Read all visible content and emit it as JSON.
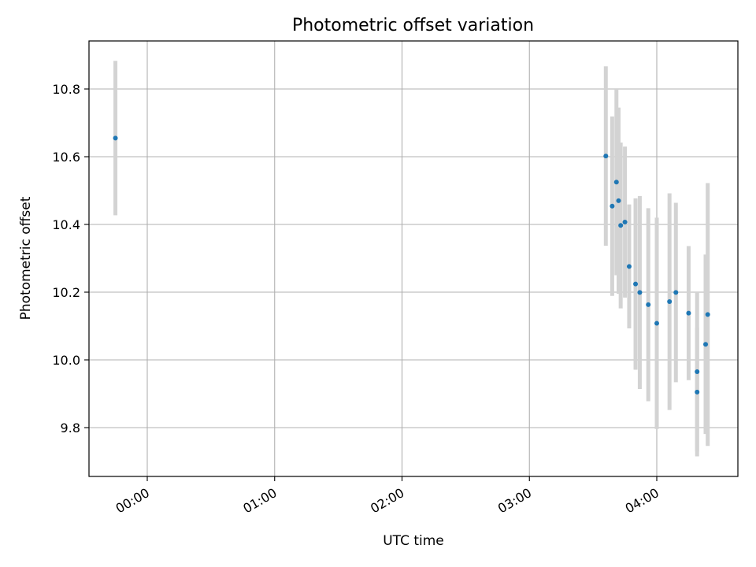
{
  "chart_data": {
    "type": "scatter",
    "title": "Photometric offset variation",
    "xlabel": "UTC time",
    "ylabel": "Photometric offset",
    "x_ticks": [
      "00:00",
      "01:00",
      "02:00",
      "03:00",
      "04:00"
    ],
    "y_ticks": [
      "9.8",
      "10.0",
      "10.2",
      "10.4",
      "10.6",
      "10.8"
    ],
    "grid": true,
    "colors": {
      "points": "#1f77b4",
      "errorbars": "#d3d3d3",
      "grid": "#b0b0b0"
    },
    "points": [
      {
        "time": "23:45",
        "y": 10.655,
        "yerr": 0.228
      },
      {
        "time": "03:36",
        "y": 10.602,
        "yerr": 0.265
      },
      {
        "time": "03:39",
        "y": 10.454,
        "yerr": 0.265
      },
      {
        "time": "03:41",
        "y": 10.525,
        "yerr": 0.275
      },
      {
        "time": "03:42",
        "y": 10.47,
        "yerr": 0.275
      },
      {
        "time": "03:43",
        "y": 10.397,
        "yerr": 0.245
      },
      {
        "time": "03:45",
        "y": 10.407,
        "yerr": 0.223
      },
      {
        "time": "03:47",
        "y": 10.276,
        "yerr": 0.183
      },
      {
        "time": "03:50",
        "y": 10.224,
        "yerr": 0.253
      },
      {
        "time": "03:52",
        "y": 10.199,
        "yerr": 0.285
      },
      {
        "time": "03:56",
        "y": 10.163,
        "yerr": 0.285
      },
      {
        "time": "04:00",
        "y": 10.108,
        "yerr": 0.312
      },
      {
        "time": "04:06",
        "y": 10.172,
        "yerr": 0.32
      },
      {
        "time": "04:09",
        "y": 10.199,
        "yerr": 0.265
      },
      {
        "time": "04:15",
        "y": 10.138,
        "yerr": 0.198
      },
      {
        "time": "04:19",
        "y": 9.965,
        "yerr": 0.235
      },
      {
        "time": "04:19",
        "y": 9.905,
        "yerr": 0.19
      },
      {
        "time": "04:23",
        "y": 10.046,
        "yerr": 0.265
      },
      {
        "time": "04:24",
        "y": 10.134,
        "yerr": 0.388
      }
    ]
  }
}
